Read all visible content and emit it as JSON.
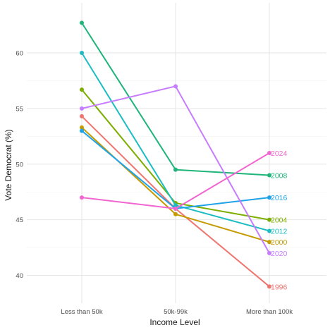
{
  "chart_data": {
    "type": "line",
    "xlabel": "Income Level",
    "ylabel": "Vote Democrat (%)",
    "categories": [
      "Less than 50k",
      "50k-99k",
      "More than 100k"
    ],
    "ylim": [
      37.5,
      64.5
    ],
    "yticks": [
      40,
      45,
      50,
      55,
      60
    ],
    "grid": true,
    "legend": "none (series labeled at line ends)",
    "series": [
      {
        "name": "1996",
        "color": "#F0746E",
        "values": [
          54.3,
          46.0,
          39.0
        ]
      },
      {
        "name": "2000",
        "color": "#C49A00",
        "values": [
          53.3,
          45.5,
          43.0
        ]
      },
      {
        "name": "2004",
        "color": "#7CAE00",
        "values": [
          56.7,
          46.5,
          45.0
        ]
      },
      {
        "name": "2008",
        "color": "#1FB57A",
        "values": [
          62.7,
          49.5,
          49.0
        ]
      },
      {
        "name": "2012",
        "color": "#1CBDC2",
        "values": [
          60.0,
          46.3,
          44.0
        ]
      },
      {
        "name": "2016",
        "color": "#1EA3E8",
        "values": [
          53.0,
          46.0,
          47.0
        ]
      },
      {
        "name": "2020",
        "color": "#C77CFF",
        "values": [
          55.0,
          57.0,
          42.0
        ]
      },
      {
        "name": "2024",
        "color": "#F166D0",
        "values": [
          47.0,
          46.0,
          51.0
        ]
      }
    ]
  }
}
